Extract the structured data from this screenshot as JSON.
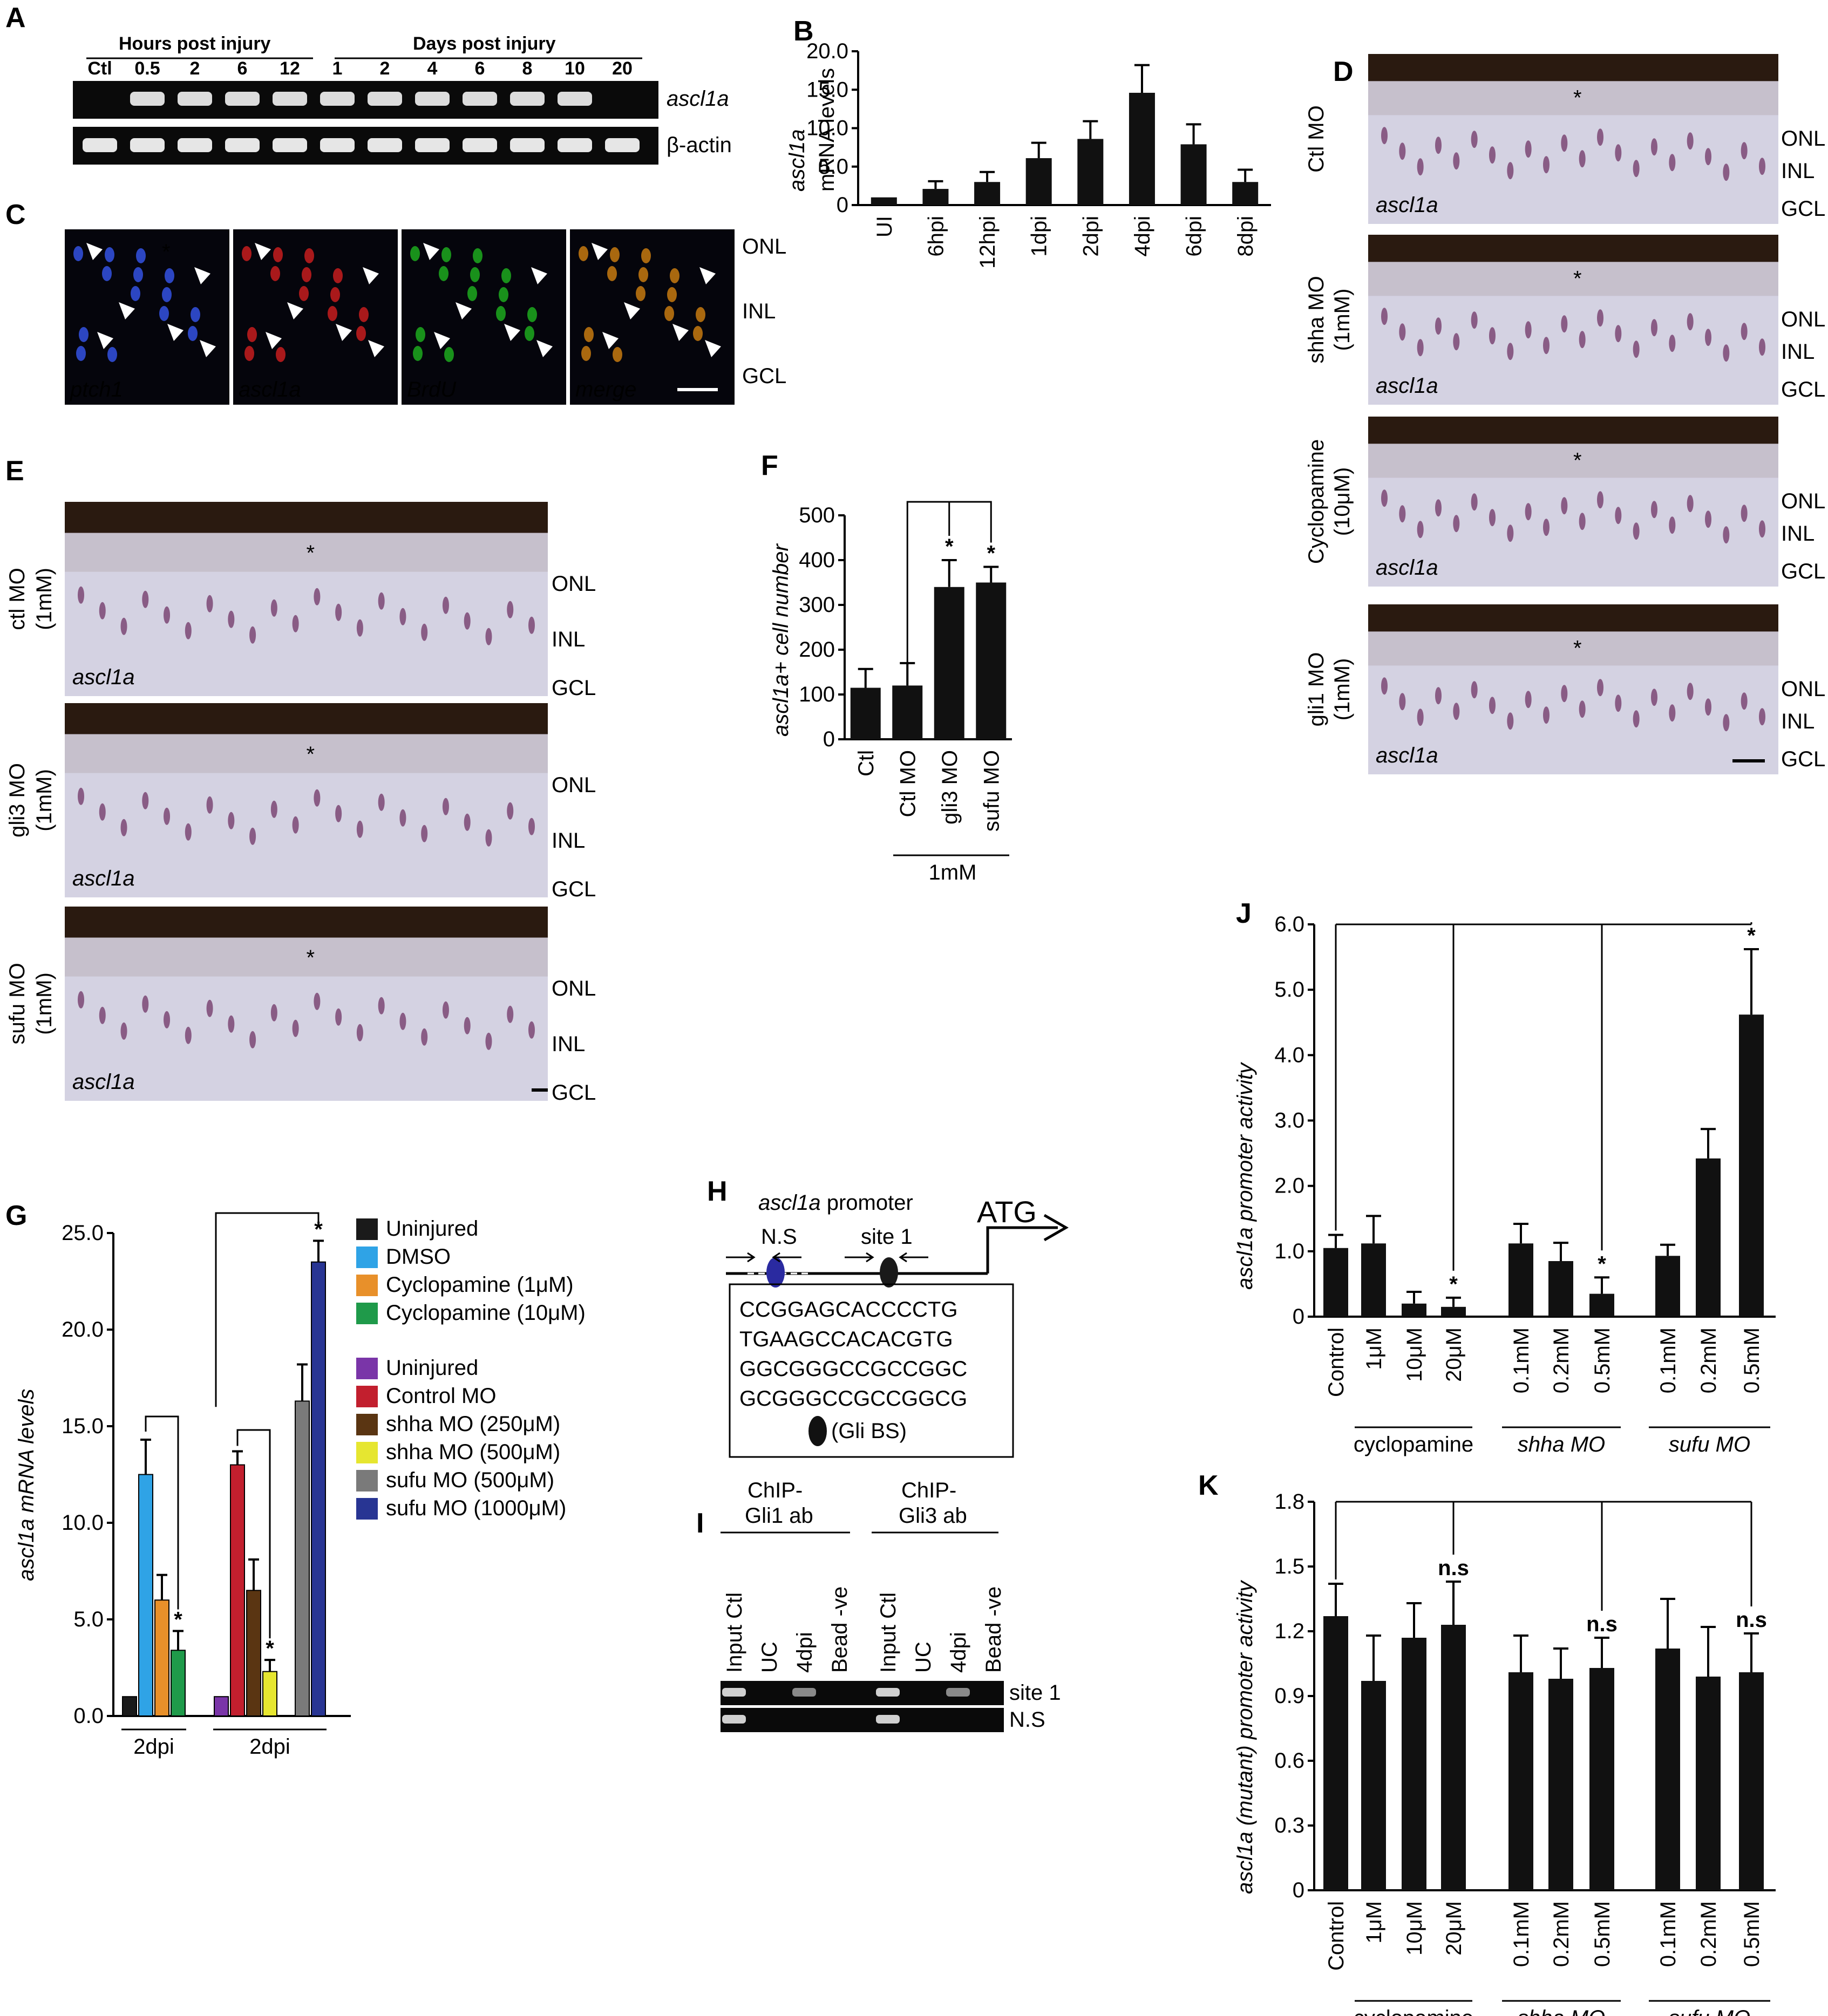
{
  "panels": {
    "A": {
      "label": "A",
      "header_hours": "Hours post injury",
      "header_days": "Days post injury",
      "lanes": [
        "Ctl",
        "0.5",
        "2",
        "6",
        "12",
        "1",
        "2",
        "4",
        "6",
        "8",
        "10",
        "20"
      ],
      "gene1": "ascl1a",
      "gene2": "β-actin"
    },
    "C": {
      "label": "C",
      "tiles": [
        "ptch1",
        "ascl1a",
        "BrdU",
        "merge"
      ],
      "tile_colors": [
        "#3a5cff",
        "#e02020",
        "#20c020",
        "#e08a10"
      ],
      "layers": [
        "ONL",
        "INL",
        "GCL"
      ]
    },
    "D": {
      "label": "D",
      "rows": [
        {
          "line1": "Ctl MO",
          "line2": "",
          "probe": "ascl1a"
        },
        {
          "line1": "shha MO",
          "line2": "(1mM)",
          "probe": "ascl1a"
        },
        {
          "line1": "Cyclopamine",
          "line2": "(10μM)",
          "probe": "ascl1a"
        },
        {
          "line1": "gli1 MO",
          "line2": "(1mM)",
          "probe": "ascl1a"
        }
      ],
      "layers": [
        "ONL",
        "INL",
        "GCL"
      ]
    },
    "E": {
      "label": "E",
      "rows": [
        {
          "line1": "ctl MO",
          "line2": "(1mM)",
          "probe": "ascl1a"
        },
        {
          "line1": "gli3 MO",
          "line2": "(1mM)",
          "probe": "ascl1a"
        },
        {
          "line1": "sufu MO",
          "line2": "(1mM)",
          "probe": "ascl1a"
        }
      ],
      "layers": [
        "ONL",
        "INL",
        "GCL"
      ]
    },
    "H": {
      "label": "H",
      "title_gene": "ascl1a",
      "title_rest": " promoter",
      "ns": "N.S",
      "site": "site 1",
      "atg": "ATG",
      "seq": [
        "CCGGAGCACCCCTG",
        "TGAAGCCACACGTG",
        "GGCGGGCCGCCGGC",
        "GCGGGCCGCCGGCG"
      ],
      "legend": "(Gli BS)"
    },
    "I": {
      "label": "I",
      "group1": [
        "ChIP-",
        "Gli1 ab"
      ],
      "group2": [
        "ChIP-",
        "Gli3 ab"
      ],
      "lanes": [
        "Input Ctl",
        "UC",
        "4dpi",
        "Bead -ve",
        "Input Ctl",
        "UC",
        "4dpi",
        "Bead -ve"
      ],
      "rows": [
        "site 1",
        "N.S"
      ]
    }
  },
  "chart_data": [
    {
      "panel": "B",
      "type": "bar",
      "ylabel_1": "ascl1a",
      "ylabel_2": "mRNA levels",
      "categories": [
        "UI",
        "6hpi",
        "12hpi",
        "1dpi",
        "2dpi",
        "4dpi",
        "6dpi",
        "8dpi"
      ],
      "values": [
        1.0,
        2.1,
        3.0,
        6.1,
        8.6,
        14.6,
        7.9,
        3.0
      ],
      "errors": [
        0.0,
        1.0,
        1.3,
        2.0,
        2.3,
        3.6,
        2.6,
        1.6
      ],
      "yticks": [
        "0",
        "5.0",
        "10.0",
        "15.0",
        "20.0"
      ],
      "ylim": [
        0,
        20
      ]
    },
    {
      "panel": "F",
      "type": "bar",
      "ylabel": "ascl1a+ cell number",
      "categories": [
        "Ctl",
        "Ctl MO",
        "gli3 MO",
        "sufu MO"
      ],
      "values": [
        115,
        120,
        340,
        350
      ],
      "errors": [
        42,
        50,
        60,
        35
      ],
      "sig": [
        "",
        "",
        "*",
        "*"
      ],
      "yticks": [
        "0",
        "100",
        "200",
        "300",
        "400",
        "500"
      ],
      "ylim": [
        0,
        500
      ],
      "group_label": "1mM"
    },
    {
      "panel": "G",
      "type": "bar",
      "ylabel": "ascl1a mRNA levels",
      "ylim": [
        0,
        25
      ],
      "yticks": [
        "0.0",
        "5.0",
        "10.0",
        "15.0",
        "20.0",
        "25.0"
      ],
      "groups": [
        {
          "label": "2dpi",
          "bars": [
            {
              "name": "Uninjured",
              "value": 1.0,
              "error": 0.0,
              "color": "#1a1a1a",
              "sig": ""
            },
            {
              "name": "DMSO",
              "value": 12.5,
              "error": 1.8,
              "color": "#2fa3e6",
              "sig": ""
            },
            {
              "name": "Cyclopamine (1μM)",
              "value": 6.0,
              "error": 1.3,
              "color": "#e8902a",
              "sig": ""
            },
            {
              "name": "Cyclopamine (10μM)",
              "value": 3.4,
              "error": 1.0,
              "color": "#1f9a4a",
              "sig": "*"
            }
          ]
        },
        {
          "label": "2dpi",
          "bars": [
            {
              "name": "Uninjured",
              "value": 1.0,
              "error": 0.0,
              "color": "#7a35a8",
              "sig": ""
            },
            {
              "name": "Control MO",
              "value": 13.0,
              "error": 0.7,
              "color": "#c21f2e",
              "sig": ""
            },
            {
              "name": "shha MO (250μM)",
              "value": 6.5,
              "error": 1.6,
              "color": "#5a3512",
              "sig": ""
            },
            {
              "name": "shha MO (500μM)",
              "value": 2.3,
              "error": 0.6,
              "color": "#e6e630",
              "sig": "*"
            },
            {
              "name": "sufu MO (500μM)",
              "value": 16.3,
              "error": 1.9,
              "color": "#7a7a7a",
              "sig": ""
            },
            {
              "name": "sufu MO (1000μM)",
              "value": 23.5,
              "error": 1.1,
              "color": "#283593",
              "sig": "*"
            }
          ]
        }
      ],
      "legend": [
        {
          "label": "Uninjured",
          "color": "#1a1a1a"
        },
        {
          "label": "DMSO",
          "color": "#2fa3e6"
        },
        {
          "label": "Cyclopamine (1μM)",
          "color": "#e8902a"
        },
        {
          "label": "Cyclopamine (10μM)",
          "color": "#1f9a4a"
        },
        {
          "label": "Uninjured",
          "color": "#7a35a8"
        },
        {
          "label": "Control MO",
          "color": "#c21f2e"
        },
        {
          "label": "shha MO (250μM)",
          "color": "#5a3512"
        },
        {
          "label": "shha MO (500μM)",
          "color": "#e6e630"
        },
        {
          "label": "sufu MO (500μM)",
          "color": "#7a7a7a"
        },
        {
          "label": "sufu MO (1000μM)",
          "color": "#283593"
        }
      ]
    },
    {
      "panel": "J",
      "type": "bar",
      "ylabel": "ascl1a promoter activity",
      "ylim": [
        0,
        6
      ],
      "yticks": [
        "0",
        "1.0",
        "2.0",
        "3.0",
        "4.0",
        "5.0",
        "6.0"
      ],
      "categories": [
        "Control",
        "1μM",
        "10μM",
        "20μM",
        "0.1mM",
        "0.2mM",
        "0.5mM",
        "0.1mM",
        "0.2mM",
        "0.5mM"
      ],
      "values": [
        1.05,
        1.12,
        0.2,
        0.15,
        1.12,
        0.85,
        0.35,
        0.93,
        2.42,
        4.62
      ],
      "errors": [
        0.2,
        0.42,
        0.18,
        0.14,
        0.3,
        0.28,
        0.25,
        0.17,
        0.45,
        1.0
      ],
      "sig": [
        "",
        "",
        "",
        "*",
        "",
        "",
        "*",
        "",
        "",
        "*"
      ],
      "group_labels": [
        "cyclopamine",
        "shha MO",
        "sufu MO"
      ]
    },
    {
      "panel": "K",
      "type": "bar",
      "ylabel": "ascl1a (mutant) promoter activity",
      "ylim": [
        0,
        1.8
      ],
      "yticks": [
        "0",
        "0.3",
        "0.6",
        "0.9",
        "1.2",
        "1.5",
        "1.8"
      ],
      "categories": [
        "Control",
        "1μM",
        "10μM",
        "20μM",
        "0.1mM",
        "0.2mM",
        "0.5mM",
        "0.1mM",
        "0.2mM",
        "0.5mM"
      ],
      "values": [
        1.27,
        0.97,
        1.17,
        1.23,
        1.01,
        0.98,
        1.03,
        1.12,
        0.99,
        1.01
      ],
      "errors": [
        0.15,
        0.21,
        0.16,
        0.2,
        0.17,
        0.14,
        0.14,
        0.23,
        0.23,
        0.18
      ],
      "sig": [
        "",
        "",
        "",
        "n.s",
        "",
        "",
        "n.s",
        "",
        "",
        "n.s"
      ],
      "group_labels": [
        "cyclopamine",
        "shha MO",
        "sufu MO"
      ]
    }
  ]
}
